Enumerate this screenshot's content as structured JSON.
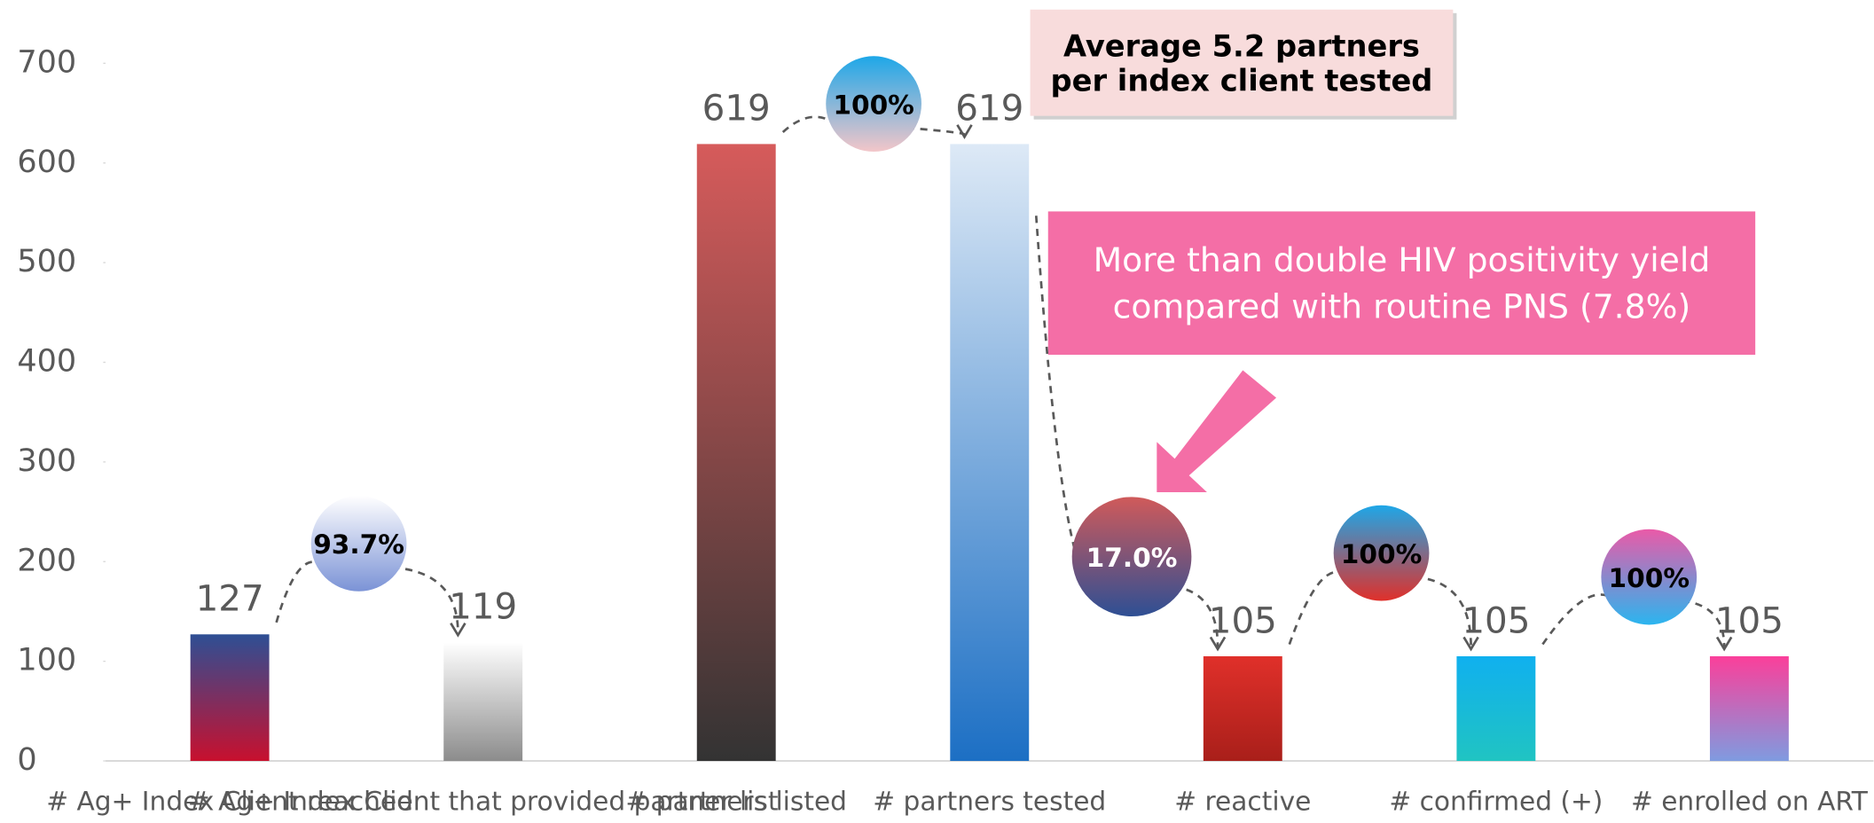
{
  "chart_data": {
    "type": "bar",
    "categories": [
      "# Ag+ Index Client reached",
      "# Ag+ Index Client that provided partner list",
      "# partners listed",
      "# partners tested",
      "# reactive",
      "# confirmed (+)",
      "# enrolled on ART"
    ],
    "values": [
      127,
      119,
      619,
      619,
      105,
      105,
      105
    ],
    "colors": [
      [
        "#2e4f94",
        "#c8102e"
      ],
      [
        "#ffffff",
        "#8c8c8c"
      ],
      [
        "#d65b5b",
        "#333333"
      ],
      [
        "#dde9f6",
        "#1c6fc4"
      ],
      [
        "#e0302a",
        "#a91f1a"
      ],
      [
        "#10b0ef",
        "#20c4c2"
      ],
      [
        "#fb3f9a",
        "#7f9be0"
      ]
    ],
    "ylim": [
      0,
      700
    ],
    "yticks": [
      0,
      100,
      200,
      300,
      400,
      500,
      600,
      700
    ],
    "conversion_labels": [
      "93.7%",
      "100%",
      "17.0%",
      "100%",
      "100%"
    ],
    "conversion_colors": [
      [
        "#ffffff",
        "#7b93d6"
      ],
      [
        "#1ea7e8",
        "#f3c6c9"
      ],
      [
        "#d05a5a",
        "#2e4f94"
      ],
      [
        "#1ea7e8",
        "#e0302a"
      ],
      [
        "#ea5aa8",
        "#2bb5ef"
      ]
    ],
    "annotations": [
      "Average 5.2 partners per index client tested",
      "More than double HIV positivity yield compared with routine PNS (7.8%)"
    ]
  }
}
